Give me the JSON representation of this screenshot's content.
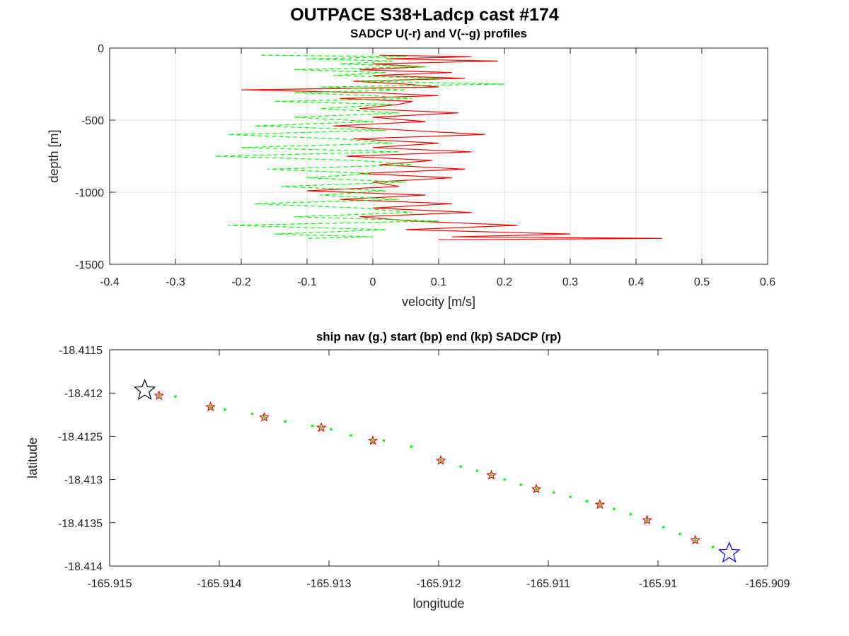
{
  "figure": {
    "title": "OUTPACE S38+Ladcp cast #174"
  },
  "chart_data": [
    {
      "type": "line",
      "title": "SADCP U(-r) and V(--g) profiles",
      "xlabel": "velocity [m/s]",
      "ylabel": "depth [m]",
      "xlim": [
        -0.4,
        0.6
      ],
      "ylim": [
        -1500,
        0
      ],
      "xticks": [
        "-0.4",
        "-0.3",
        "-0.2",
        "-0.1",
        "0",
        "0.1",
        "0.2",
        "0.3",
        "0.4",
        "0.5",
        "0.6"
      ],
      "yticks": [
        "0",
        "-500",
        "-1000",
        "-1500"
      ],
      "grid": true,
      "series": [
        {
          "name": "U",
          "color": "#ff0000",
          "style": "solid",
          "depth": [
            -50,
            -60,
            -75,
            -90,
            -110,
            -130,
            -150,
            -170,
            -190,
            -210,
            -230,
            -250,
            -270,
            -290,
            -310,
            -330,
            -350,
            -370,
            -390,
            -420,
            -450,
            -480,
            -510,
            -540,
            -570,
            -600,
            -630,
            -660,
            -690,
            -720,
            -750,
            -780,
            -810,
            -840,
            -870,
            -900,
            -930,
            -960,
            -990,
            -1020,
            -1050,
            -1080,
            -1110,
            -1140,
            -1170,
            -1200,
            -1230,
            -1260,
            -1290,
            -1310,
            -1320,
            -1330
          ],
          "values": [
            0.01,
            0.15,
            0.02,
            0.19,
            0.0,
            0.08,
            -0.02,
            0.12,
            0.0,
            0.14,
            -0.03,
            0.05,
            0.1,
            -0.2,
            0.0,
            0.1,
            -0.05,
            0.06,
            0.04,
            -0.02,
            0.13,
            0.0,
            0.08,
            -0.06,
            0.05,
            0.17,
            -0.03,
            0.1,
            0.0,
            0.15,
            -0.04,
            0.09,
            0.01,
            0.14,
            -0.02,
            0.12,
            0.0,
            0.04,
            -0.1,
            0.08,
            -0.05,
            0.12,
            0.0,
            0.15,
            -0.02,
            0.06,
            0.22,
            0.05,
            0.3,
            0.12,
            0.44,
            0.1
          ]
        },
        {
          "name": "V",
          "color": "#00ff00",
          "style": "dashed",
          "depth": [
            -50,
            -60,
            -75,
            -90,
            -110,
            -130,
            -150,
            -170,
            -190,
            -210,
            -230,
            -250,
            -270,
            -290,
            -310,
            -330,
            -350,
            -370,
            -390,
            -420,
            -450,
            -480,
            -510,
            -540,
            -570,
            -600,
            -630,
            -660,
            -690,
            -720,
            -750,
            -780,
            -810,
            -840,
            -870,
            -900,
            -930,
            -960,
            -990,
            -1020,
            -1050,
            -1080,
            -1110,
            -1140,
            -1170,
            -1200,
            -1230,
            -1260,
            -1290,
            -1310,
            -1320
          ],
          "values": [
            -0.17,
            0.05,
            -0.1,
            0.03,
            -0.05,
            0.08,
            -0.12,
            0.02,
            -0.06,
            0.1,
            -0.02,
            0.2,
            -0.08,
            0.05,
            -0.12,
            0.0,
            0.06,
            -0.15,
            0.03,
            -0.08,
            0.04,
            -0.12,
            0.0,
            -0.18,
            0.02,
            -0.22,
            -0.05,
            0.03,
            -0.2,
            0.04,
            -0.24,
            -0.02,
            0.06,
            -0.16,
            0.0,
            -0.1,
            0.05,
            -0.14,
            0.02,
            -0.08,
            0.04,
            -0.18,
            -0.02,
            0.06,
            -0.12,
            0.1,
            -0.22,
            0.02,
            -0.15,
            0.0,
            -0.1
          ]
        }
      ]
    },
    {
      "type": "scatter",
      "title": "ship nav (g.) start (bp) end (kp) SADCP (rp)",
      "xlabel": "longitude",
      "ylabel": "latitude",
      "xlim": [
        -165.915,
        -165.909
      ],
      "ylim": [
        -18.414,
        -18.4115
      ],
      "xticks": [
        "-165.915",
        "-165.914",
        "-165.913",
        "-165.912",
        "-165.911",
        "-165.91",
        "-165.909"
      ],
      "yticks": [
        "-18.4115",
        "-18.412",
        "-18.4125",
        "-18.413",
        "-18.4135",
        "-18.414"
      ],
      "grid": false,
      "start_marker": {
        "label": "start (bp)",
        "color": "#0000ff",
        "lon": -165.90935,
        "lat": -18.41385
      },
      "end_marker": {
        "label": "end (kp)",
        "color": "#000000",
        "lon": -165.91468,
        "lat": -18.41197
      },
      "sadcp_points": {
        "label": "SADCP (rp)",
        "color": "#ff0000",
        "lon": [
          -165.91455,
          -165.91408,
          -165.91359,
          -165.91307,
          -165.9126,
          -165.91198,
          -165.91152,
          -165.91111,
          -165.91053,
          -165.9101,
          -165.90966
        ],
        "lat": [
          -18.41203,
          -18.41216,
          -18.41228,
          -18.4124,
          -18.41255,
          -18.41278,
          -18.41295,
          -18.41311,
          -18.41329,
          -18.41347,
          -18.4137
        ]
      },
      "ship_nav": {
        "label": "ship nav (g.)",
        "color": "#00ff00",
        "lon": [
          -165.91455,
          -165.9144,
          -165.91408,
          -165.91395,
          -165.9137,
          -165.91359,
          -165.9134,
          -165.91315,
          -165.91307,
          -165.91298,
          -165.9128,
          -165.9126,
          -165.9125,
          -165.91225,
          -165.91198,
          -165.9118,
          -165.91165,
          -165.91152,
          -165.9114,
          -165.91125,
          -165.91111,
          -165.91095,
          -165.9108,
          -165.91065,
          -165.91053,
          -165.9104,
          -165.91025,
          -165.9101,
          -165.90995,
          -165.9098,
          -165.90966,
          -165.9095
        ],
        "lat": [
          -18.41203,
          -18.41204,
          -18.41216,
          -18.41219,
          -18.41224,
          -18.41228,
          -18.41233,
          -18.41238,
          -18.4124,
          -18.41242,
          -18.41249,
          -18.41255,
          -18.41255,
          -18.41262,
          -18.41278,
          -18.41285,
          -18.4129,
          -18.41295,
          -18.413,
          -18.41306,
          -18.41311,
          -18.41315,
          -18.4132,
          -18.41325,
          -18.41329,
          -18.41334,
          -18.4134,
          -18.41347,
          -18.41355,
          -18.41363,
          -18.4137,
          -18.41378
        ]
      }
    }
  ]
}
